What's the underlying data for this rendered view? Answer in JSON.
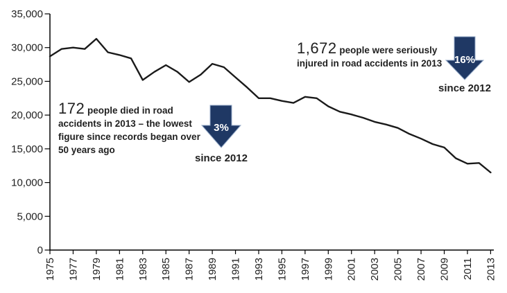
{
  "chart_data": {
    "type": "line",
    "title": "",
    "xlabel": "",
    "ylabel": "",
    "x": [
      1975,
      1976,
      1977,
      1978,
      1979,
      1980,
      1981,
      1982,
      1983,
      1984,
      1985,
      1986,
      1987,
      1988,
      1989,
      1990,
      1991,
      1992,
      1993,
      1994,
      1995,
      1996,
      1997,
      1998,
      1999,
      2000,
      2001,
      2002,
      2003,
      2004,
      2005,
      2006,
      2007,
      2008,
      2009,
      2010,
      2011,
      2012,
      2013
    ],
    "values": [
      28700,
      29800,
      30000,
      29800,
      31300,
      29300,
      28900,
      28400,
      25200,
      26400,
      27400,
      26400,
      24900,
      26000,
      27600,
      27100,
      25600,
      24100,
      22500,
      22500,
      22100,
      21800,
      22700,
      22500,
      21300,
      20500,
      20100,
      19600,
      19000,
      18600,
      18100,
      17200,
      16500,
      15700,
      15200,
      13600,
      12800,
      12900,
      11500
    ],
    "x_tick_labels": [
      "1975",
      "1977",
      "1979",
      "1981",
      "1983",
      "1985",
      "1987",
      "1989",
      "1991",
      "1993",
      "1995",
      "1997",
      "1999",
      "2001",
      "2003",
      "2005",
      "2007",
      "2009",
      "2011",
      "2013"
    ],
    "y_tick_labels": [
      "0",
      "5,000",
      "10,000",
      "15,000",
      "20,000",
      "25,000",
      "30,000",
      "35,000"
    ],
    "ylim": [
      0,
      35000
    ],
    "y_tick_step": 5000,
    "grid": false,
    "legend": false
  },
  "annotations": {
    "deaths": {
      "number": "172",
      "text": "people died in road accidents  in 2013 – the lowest figure since records began over 50 years ago",
      "arrow_pct": "3%",
      "arrow_caption": "since 2012"
    },
    "serious": {
      "number": "1,672",
      "text": "people were seriously injured in road accidents in 2013",
      "arrow_pct": "16%",
      "arrow_caption": "since 2012"
    }
  },
  "colors": {
    "line": "#1a1a1a",
    "axis": "#000000",
    "tick_text": "#1f1f1f",
    "arrow_fill": "#1f3864",
    "arrow_edge": "#93a9c7"
  }
}
